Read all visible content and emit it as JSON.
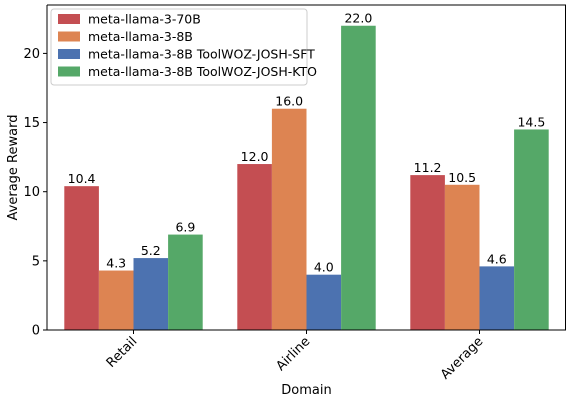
{
  "chart_data": {
    "type": "bar",
    "categories": [
      "Retail",
      "Airline",
      "Average"
    ],
    "xlabel": "Domain",
    "ylabel": "Average Reward",
    "ylim": [
      0,
      23.5
    ],
    "yticks": [
      0,
      5,
      10,
      15,
      20
    ],
    "grid": false,
    "legend_position": "top-left",
    "series": [
      {
        "name": "meta-llama-3-70B",
        "color": "#c44e52",
        "values": [
          10.4,
          12.0,
          11.2
        ],
        "labels": [
          "10.4",
          "12.0",
          "11.2"
        ]
      },
      {
        "name": "meta-llama-3-8B",
        "color": "#dd8452",
        "values": [
          4.3,
          16.0,
          10.5
        ],
        "labels": [
          "4.3",
          "16.0",
          "10.5"
        ]
      },
      {
        "name": "meta-llama-3-8B ToolWOZ-JOSH-SFT",
        "color": "#4c72b0",
        "values": [
          5.2,
          4.0,
          4.6
        ],
        "labels": [
          "5.2",
          "4.0",
          "4.6"
        ]
      },
      {
        "name": "meta-llama-3-8B ToolWOZ-JOSH-KTO",
        "color": "#55a868",
        "values": [
          6.9,
          22.0,
          14.5
        ],
        "labels": [
          "6.9",
          "22.0",
          "14.5"
        ]
      }
    ]
  }
}
